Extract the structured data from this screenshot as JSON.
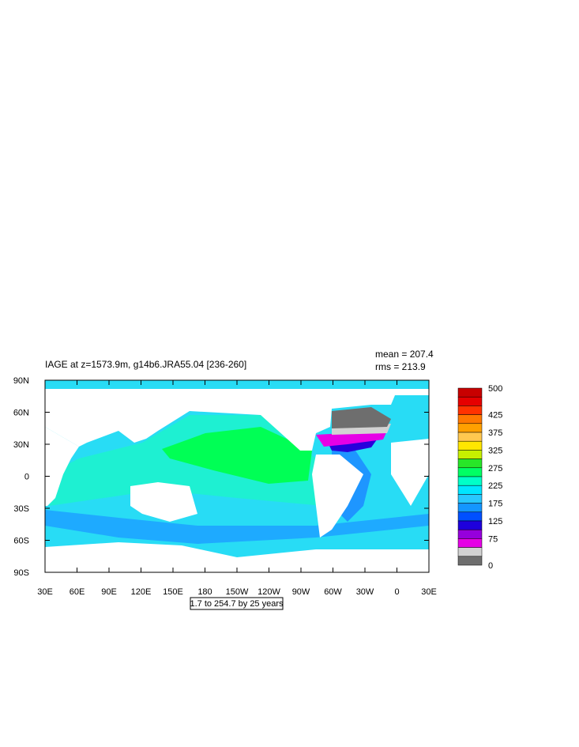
{
  "title": "IAGE at z=1573.9m, g14b6.JRA55.04 [236-260]",
  "stats": {
    "mean": "mean = 207.4",
    "rms": "rms = 213.9"
  },
  "x_axis": {
    "labels": [
      "30E",
      "60E",
      "90E",
      "120E",
      "150E",
      "180",
      "150W",
      "120W",
      "90W",
      "60W",
      "30W",
      "0",
      "30E"
    ]
  },
  "y_axis": {
    "labels": [
      "90N",
      "60N",
      "30N",
      "0",
      "30S",
      "60S",
      "90S"
    ]
  },
  "colorbar": {
    "labels": [
      "500",
      "425",
      "375",
      "325",
      "275",
      "225",
      "175",
      "125",
      "75",
      "0"
    ],
    "colors": [
      "#c80000",
      "#e60000",
      "#ff3200",
      "#ff7800",
      "#ffa000",
      "#ffc850",
      "#ffe600",
      "#c8f000",
      "#28e628",
      "#00ff64",
      "#00ffc8",
      "#00e6ff",
      "#28c8ff",
      "#1496ff",
      "#0050ff",
      "#1e00dc",
      "#9600dc",
      "#e600e6",
      "#d2d2d2",
      "#6e6e6e"
    ]
  },
  "note": "1.7 to 254.7 by 25 years"
}
